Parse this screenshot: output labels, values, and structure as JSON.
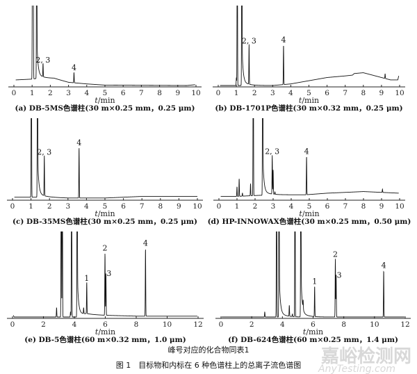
{
  "figure": {
    "note": "峰号对应的化合物同表1",
    "caption": "图 1　目标物和内标在 6 种色谱柱上的总离子流色谱图",
    "watermark": {
      "line1": "嘉峪检测网",
      "line2": "AnyTesting.com"
    }
  },
  "chart_data": [
    {
      "type": "line",
      "title": "(a) DB-5MS色谱柱(30 m×0.25 mm，0.25 μm)",
      "xlabel_italic": "t",
      "xlabel_unit": "/min",
      "xlim": [
        0,
        10
      ],
      "xticks": [
        0,
        1,
        2,
        3,
        4,
        5,
        6,
        7,
        8,
        9,
        10
      ],
      "trace_range": [
        0.1,
        9.95
      ],
      "baseline": [
        [
          0.1,
          0.07
        ],
        [
          1.0,
          0.08
        ],
        [
          1.3,
          0.09
        ],
        [
          2.2,
          0.09
        ],
        [
          3.0,
          0.04
        ],
        [
          4.0,
          0.02
        ],
        [
          5.0,
          0.005
        ],
        [
          9.5,
          0.0
        ],
        [
          9.95,
          0.01
        ]
      ],
      "peaks": [
        {
          "t": 1.02,
          "h": 3
        },
        {
          "t": 1.06,
          "h": 3
        },
        {
          "t": 1.25,
          "h": 3,
          "tail": true
        },
        {
          "t": 1.6,
          "h": 0.17,
          "label": "2, 3"
        },
        {
          "t": 3.3,
          "h": 0.13,
          "label": "4"
        }
      ]
    },
    {
      "type": "line",
      "title": "(b) DB-1701P色谱柱(30 m×0.32 mm，0.25 μm)",
      "xlabel_italic": "t",
      "xlabel_unit": "/min",
      "xlim": [
        0,
        10
      ],
      "xticks": [
        0,
        1,
        2,
        3,
        4,
        5,
        6,
        7,
        8,
        9,
        10
      ],
      "trace_range": [
        0.1,
        9.95
      ],
      "baseline": [
        [
          0.1,
          0.0
        ],
        [
          2.0,
          0.0
        ],
        [
          3.0,
          0.0
        ],
        [
          4.0,
          0.02
        ],
        [
          5.0,
          0.06
        ],
        [
          6.0,
          0.1
        ],
        [
          7.0,
          0.12
        ],
        [
          7.4,
          0.13
        ],
        [
          7.5,
          0.15
        ],
        [
          8.0,
          0.16
        ],
        [
          8.5,
          0.13
        ],
        [
          9.0,
          0.1
        ],
        [
          9.5,
          0.07
        ],
        [
          9.9,
          0.07
        ],
        [
          9.95,
          0.12
        ]
      ],
      "peaks": [
        {
          "t": 1.0,
          "h": 0.1
        },
        {
          "t": 1.05,
          "h": 3
        },
        {
          "t": 1.3,
          "h": 3,
          "tail": true
        },
        {
          "t": 1.7,
          "h": 0.5,
          "label": "2, 3"
        },
        {
          "t": 3.6,
          "h": 0.5,
          "label": "4"
        },
        {
          "t": 9.2,
          "h": 0.06
        }
      ]
    },
    {
      "type": "line",
      "title": "(c) DB-35MS色谱柱(30 m×0.25 mm，0.25 μm)",
      "xlabel_italic": "t",
      "xlabel_unit": "/min",
      "xlim": [
        0,
        10
      ],
      "xticks": [
        0,
        1,
        2,
        3,
        4,
        5,
        6,
        7,
        8,
        9,
        10
      ],
      "trace_range": [
        0.1,
        10.0
      ],
      "baseline": [
        [
          0.1,
          0.02
        ],
        [
          1.9,
          0.02
        ],
        [
          3.0,
          0.01
        ],
        [
          5.0,
          0.01
        ],
        [
          7.0,
          0.03
        ],
        [
          10.0,
          0.03
        ]
      ],
      "peaks": [
        {
          "t": 1.02,
          "h": 3
        },
        {
          "t": 1.35,
          "h": 3,
          "tail": true
        },
        {
          "t": 1.72,
          "h": 0.5,
          "label": "2, 3"
        },
        {
          "t": 3.6,
          "h": 0.63,
          "label": "4"
        }
      ]
    },
    {
      "type": "line",
      "title": "(d) HP-INNOWAX色谱柱(30 m×0.25 mm，0.50 μm)",
      "xlabel_italic": "t",
      "xlabel_unit": "/min",
      "xlim": [
        0,
        10
      ],
      "xticks": [
        0,
        1,
        2,
        3,
        4,
        5,
        6,
        7,
        8,
        9,
        10
      ],
      "trace_range": [
        0.1,
        9.95
      ],
      "baseline": [
        [
          0.1,
          0.03
        ],
        [
          1.0,
          0.03
        ],
        [
          1.9,
          0.04
        ],
        [
          3.0,
          0.05
        ],
        [
          4.8,
          0.05
        ],
        [
          6.0,
          0.07
        ],
        [
          8.0,
          0.09
        ],
        [
          9.0,
          0.08
        ],
        [
          9.95,
          0.07
        ]
      ],
      "peaks": [
        {
          "t": 1.0,
          "h": 0.12
        },
        {
          "t": 1.12,
          "h": 0.22
        },
        {
          "t": 1.3,
          "h": 0.04
        },
        {
          "t": 1.75,
          "h": 0.15
        },
        {
          "t": 1.9,
          "h": 3
        },
        {
          "t": 2.42,
          "h": 3,
          "tail": true
        },
        {
          "t": 2.95,
          "h": 0.48,
          "label": "2, 3"
        },
        {
          "t": 3.0,
          "h": 0.3
        },
        {
          "t": 3.1,
          "h": 0.03
        },
        {
          "t": 4.85,
          "h": 0.48,
          "label": "4"
        },
        {
          "t": 9.05,
          "h": 0.04
        }
      ]
    },
    {
      "type": "line",
      "title": "(e) DB-5色谱柱(60 m×0.32 mm，1.0 μm)",
      "xlabel_italic": "t",
      "xlabel_unit": "/min",
      "xlim": [
        0,
        12
      ],
      "xticks": [
        0,
        2,
        4,
        6,
        8,
        10,
        12
      ],
      "trace_range": [
        0.05,
        11.95
      ],
      "baseline": [
        [
          0.05,
          0.02
        ],
        [
          0.1,
          0.0
        ],
        [
          4.2,
          0.0
        ],
        [
          4.8,
          0.03
        ],
        [
          6.0,
          0.02
        ],
        [
          8.0,
          0.01
        ],
        [
          12.0,
          0.01
        ]
      ],
      "peaks": [
        {
          "t": 2.85,
          "h": 0.11
        },
        {
          "t": 3.15,
          "h": 3
        },
        {
          "t": 3.22,
          "h": 3
        },
        {
          "t": 3.75,
          "h": 0.06
        },
        {
          "t": 3.82,
          "h": 3
        },
        {
          "t": 4.18,
          "h": 3,
          "tail": true
        },
        {
          "t": 4.6,
          "h": 0.07
        },
        {
          "t": 4.8,
          "h": 0.37,
          "label": "1"
        },
        {
          "t": 5.98,
          "h": 0.73,
          "label": "2"
        },
        {
          "t": 6.04,
          "h": 0.5,
          "label": "3"
        },
        {
          "t": 8.6,
          "h": 0.8,
          "label": "4"
        }
      ]
    },
    {
      "type": "line",
      "title": "(f) DB-624色谱柱(60 m×0.25 mm，1.4 μm)",
      "xlabel_italic": "t",
      "xlabel_unit": "/min",
      "xlim": [
        0,
        12
      ],
      "xticks": [
        0,
        2,
        4,
        6,
        8,
        10,
        12
      ],
      "trace_range": [
        0.05,
        11.95
      ],
      "baseline": [
        [
          0.05,
          0.0
        ],
        [
          12.0,
          0.0
        ]
      ],
      "peaks": [
        {
          "t": 2.85,
          "h": 0.06
        },
        {
          "t": 3.62,
          "h": 3
        },
        {
          "t": 3.78,
          "h": 3,
          "tail": true
        },
        {
          "t": 4.45,
          "h": 0.13
        },
        {
          "t": 4.65,
          "h": 0.03
        },
        {
          "t": 4.82,
          "h": 3
        },
        {
          "t": 5.2,
          "h": 3,
          "tail": true
        },
        {
          "t": 5.35,
          "h": 0.1
        },
        {
          "t": 6.1,
          "h": 0.36,
          "label": "1"
        },
        {
          "t": 7.45,
          "h": 0.68,
          "label": "2"
        },
        {
          "t": 7.5,
          "h": 0.5,
          "label": "3"
        },
        {
          "t": 10.6,
          "h": 0.55,
          "label": "4"
        }
      ]
    }
  ]
}
